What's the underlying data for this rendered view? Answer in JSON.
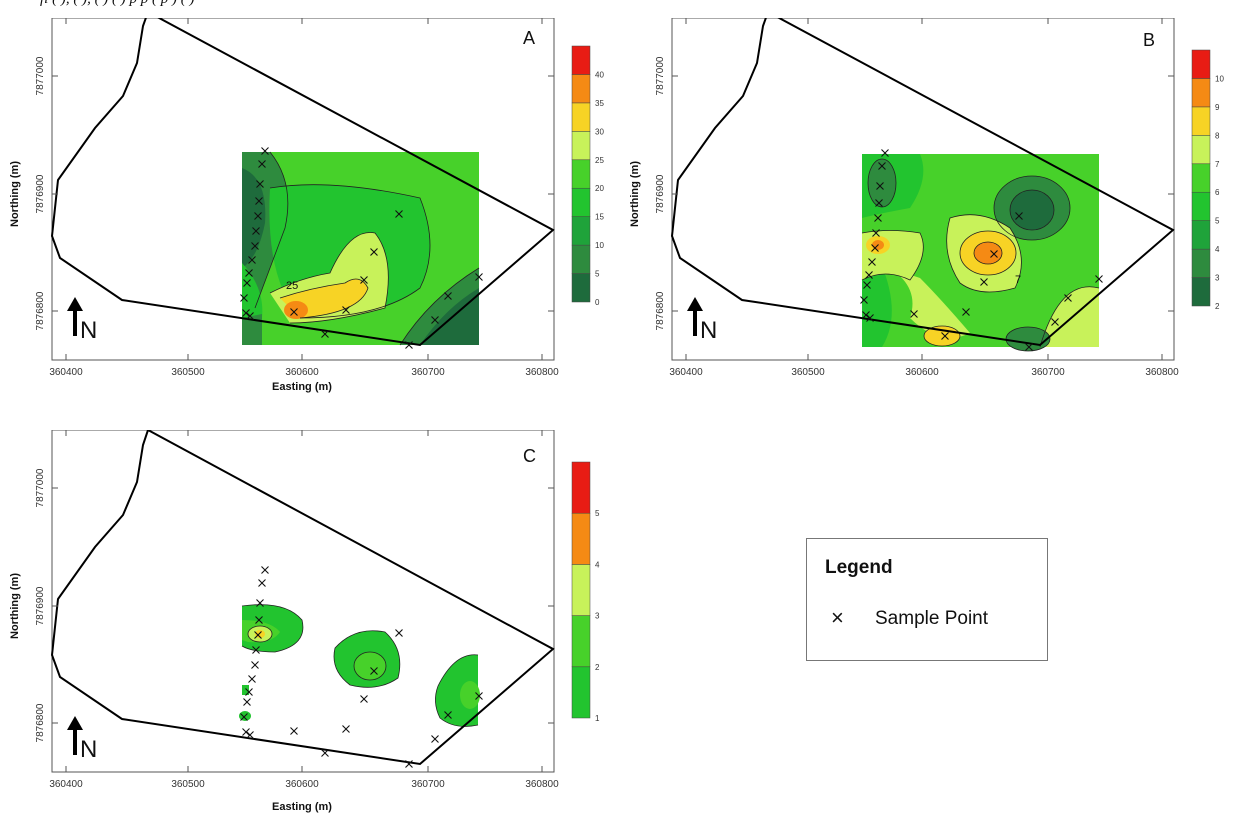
{
  "caption_fragment": "fi         (   ),   ( ),                       (   )  ( )   p    p  (   p )  ( )",
  "panels": {
    "A": {
      "label": "A",
      "legend_values": [
        "0",
        "5",
        "10",
        "15",
        "20",
        "25",
        "30",
        "35",
        "40"
      ],
      "legend_colors": [
        "#1e6b3c",
        "#2e8b3e",
        "#1fa33a",
        "#22c42f",
        "#47d12a",
        "#c8f25a",
        "#f7d325",
        "#f58a14",
        "#e81c14"
      ],
      "contour_label": "25"
    },
    "B": {
      "label": "B",
      "legend_values": [
        "2",
        "3",
        "4",
        "5",
        "6",
        "7",
        "8",
        "9",
        "10"
      ],
      "legend_colors": [
        "#1e6b3c",
        "#2e8b3e",
        "#1fa33a",
        "#22c42f",
        "#47d12a",
        "#c8f25a",
        "#f7d325",
        "#f58a14",
        "#e81c14"
      ],
      "contour_label": "7"
    },
    "C": {
      "label": "C",
      "legend_values": [
        "1",
        "2",
        "3",
        "4",
        "5"
      ],
      "legend_colors": [
        "#22c42f",
        "#47d12a",
        "#c8f25a",
        "#f58a14",
        "#e81c14"
      ]
    }
  },
  "axes": {
    "x_label": "Easting (m)",
    "y_label": "Northing (m)",
    "x_ticks": [
      "360400",
      "360500",
      "360600",
      "360700",
      "360800"
    ],
    "y_ticks": [
      "7876800",
      "7876900",
      "7877000"
    ]
  },
  "north_label": "N",
  "legend": {
    "title": "Legend",
    "marker_symbol": "×",
    "marker_label": "Sample Point"
  }
}
